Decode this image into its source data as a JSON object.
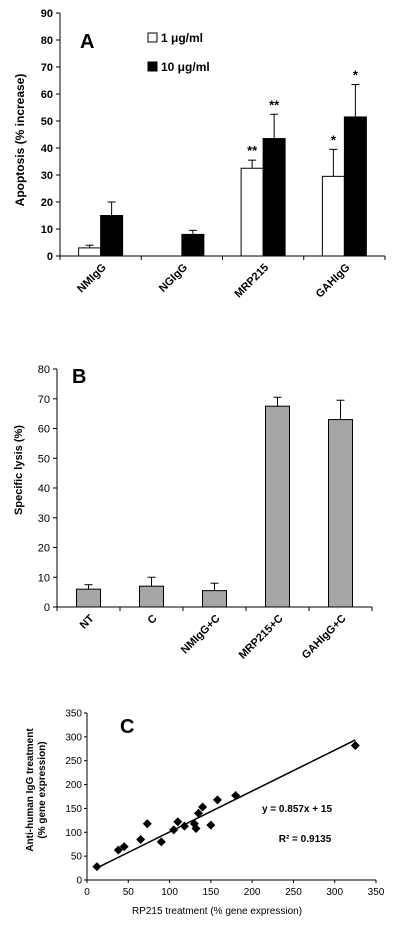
{
  "chart_data": [
    {
      "type": "bar",
      "panel_label": "A",
      "ylabel": "Apoptosis (% increase)",
      "ylim": [
        0,
        90
      ],
      "yticks": [
        0,
        10,
        20,
        30,
        40,
        50,
        60,
        70,
        80,
        90
      ],
      "categories": [
        "NMIgG",
        "NGIgG",
        "MRP215",
        "GAHIgG"
      ],
      "series": [
        {
          "name": "1 μg/ml",
          "color": "#ffffff",
          "values": [
            3,
            0,
            32.5,
            29.5
          ],
          "errors": [
            1,
            0,
            3,
            10
          ],
          "annotations": [
            "",
            "",
            "**",
            "*"
          ]
        },
        {
          "name": "10 μg/ml",
          "color": "#000000",
          "values": [
            15,
            8,
            43.5,
            51.5
          ],
          "errors": [
            5,
            1.5,
            9,
            12
          ],
          "annotations": [
            "",
            "",
            "**",
            "*"
          ]
        }
      ],
      "legend_position": "top"
    },
    {
      "type": "bar",
      "panel_label": "B",
      "ylabel": "Specific lysis (%)",
      "ylim": [
        0,
        80
      ],
      "yticks": [
        0,
        10,
        20,
        30,
        40,
        50,
        60,
        70,
        80
      ],
      "categories": [
        "NT",
        "C",
        "NMIgG+C",
        "MRP215+C",
        "GAHIgG+C"
      ],
      "values": [
        6,
        7,
        5.5,
        67.5,
        63
      ],
      "errors": [
        1.5,
        3,
        2.5,
        3,
        6.5
      ],
      "color": "#a6a6a6"
    },
    {
      "type": "scatter",
      "panel_label": "C",
      "xlabel": "RP215 treatment  (% gene expression)",
      "ylabel_line1": "Anti-human IgG treatment",
      "ylabel_line2": "(% gene expression)",
      "xlim": [
        0,
        350
      ],
      "ylim": [
        0,
        350
      ],
      "xticks": [
        0,
        50,
        100,
        150,
        200,
        250,
        300,
        350
      ],
      "yticks": [
        0,
        50,
        100,
        150,
        200,
        250,
        300,
        350
      ],
      "points": [
        [
          12,
          28
        ],
        [
          38,
          63
        ],
        [
          45,
          70
        ],
        [
          65,
          85
        ],
        [
          73,
          118
        ],
        [
          90,
          80
        ],
        [
          105,
          105
        ],
        [
          110,
          122
        ],
        [
          118,
          113
        ],
        [
          130,
          118
        ],
        [
          132,
          108
        ],
        [
          135,
          140
        ],
        [
          140,
          153
        ],
        [
          150,
          115
        ],
        [
          158,
          168
        ],
        [
          180,
          177
        ],
        [
          325,
          282
        ]
      ],
      "trendline": {
        "slope": 0.857,
        "intercept": 15
      },
      "equation": "y = 0.857x + 15",
      "r_squared": "R² = 0.9135"
    }
  ]
}
